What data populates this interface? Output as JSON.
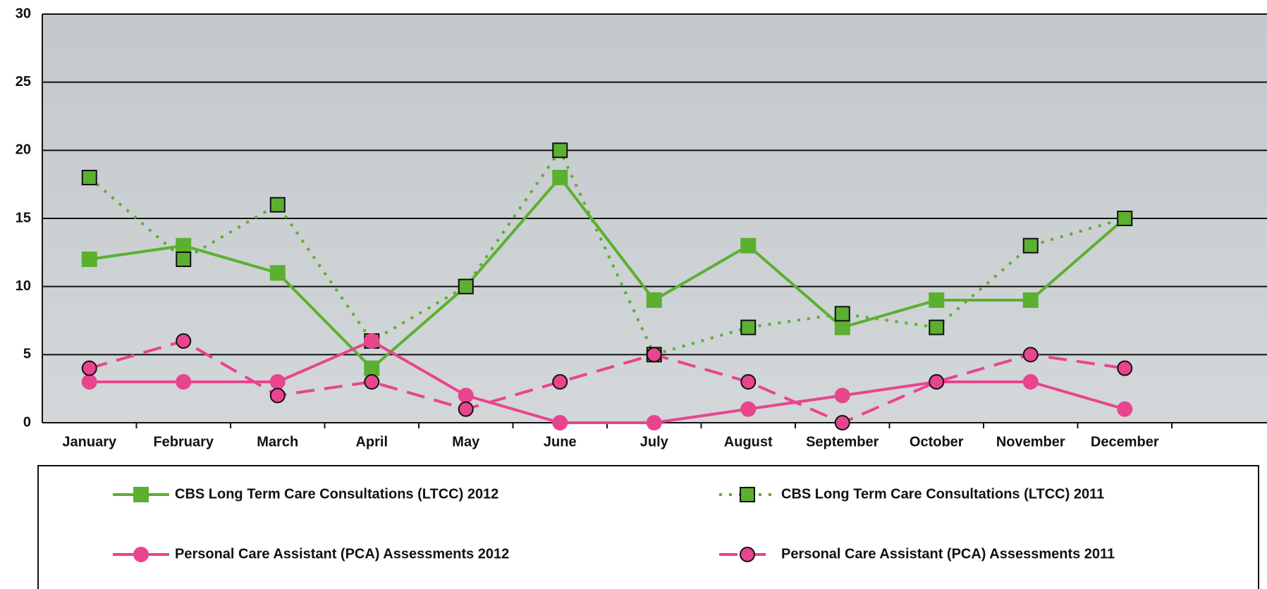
{
  "chart_data": {
    "type": "line",
    "categories": [
      "January",
      "February",
      "March",
      "April",
      "May",
      "June",
      "July",
      "August",
      "September",
      "October",
      "November",
      "December"
    ],
    "series": [
      {
        "name": "CBS Long Term Care Consultations (LTCC) 2012",
        "color": "#5bb030",
        "values": [
          12,
          13,
          11,
          4,
          10,
          18,
          9,
          13,
          7,
          9,
          9,
          15
        ]
      },
      {
        "name": "CBS Long Term Care Consultations (LTCC) 2011",
        "color": "#5bb030",
        "values": [
          18,
          12,
          16,
          6,
          10,
          20,
          5,
          7,
          8,
          7,
          13,
          15
        ]
      },
      {
        "name": "Personal Care Assistant (PCA) Assessments 2012",
        "color": "#e8458e",
        "values": [
          3,
          3,
          3,
          6,
          2,
          0,
          0,
          1,
          2,
          3,
          3,
          1
        ]
      },
      {
        "name": "Personal Care Assistant (PCA) Assessments 2011",
        "color": "#e8458e",
        "values": [
          4,
          6,
          2,
          3,
          1,
          3,
          5,
          3,
          0,
          3,
          5,
          4
        ]
      }
    ],
    "ylim": [
      0,
      30
    ],
    "yticks": [
      0,
      5,
      10,
      15,
      20,
      25,
      30
    ],
    "grid": true
  }
}
